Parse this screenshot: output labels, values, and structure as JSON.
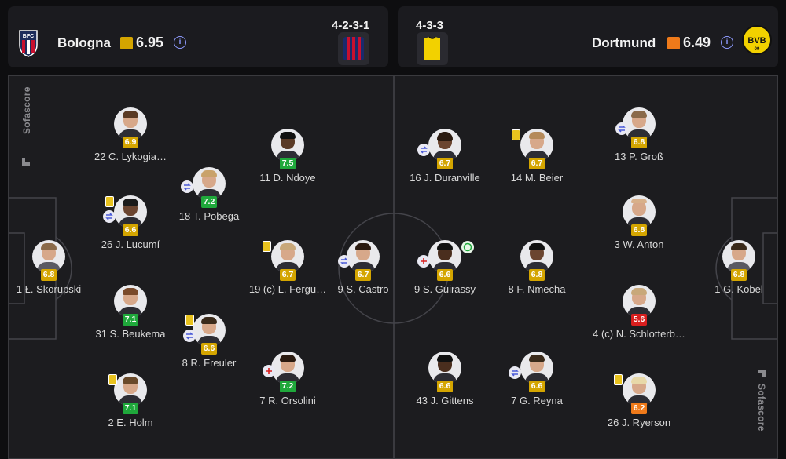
{
  "home": {
    "name": "Bologna",
    "rating": "6.95",
    "formation": "4-2-3-1",
    "rating_color": "#d4a500",
    "info": "i"
  },
  "away": {
    "name": "Dortmund",
    "rating": "6.49",
    "formation": "4-3-3",
    "rating_color": "#ef7a1a",
    "info": "i"
  },
  "watermark": "Sofascore",
  "players": [
    {
      "label": "22 C. Lykogia…",
      "rating": "6.9",
      "color": "#d4a500"
    },
    {
      "label": "26 J. Lucumí",
      "rating": "6.6",
      "color": "#d4a500"
    },
    {
      "label": "1 Ł. Skorupski",
      "rating": "6.8",
      "color": "#d4a500"
    },
    {
      "label": "31 S. Beukema",
      "rating": "7.1",
      "color": "#1fa83b"
    },
    {
      "label": "2 E. Holm",
      "rating": "7.1",
      "color": "#1fa83b"
    },
    {
      "label": "18 T. Pobega",
      "rating": "7.2",
      "color": "#1fa83b"
    },
    {
      "label": "8 R. Freuler",
      "rating": "6.6",
      "color": "#d4a500"
    },
    {
      "label": "11 D. Ndoye",
      "rating": "7.5",
      "color": "#1fa83b"
    },
    {
      "label": "19 (c) L. Fergu…",
      "rating": "6.7",
      "color": "#d4a500"
    },
    {
      "label": "7 R. Orsolini",
      "rating": "7.2",
      "color": "#1fa83b"
    },
    {
      "label": "9 S. Castro",
      "rating": "6.7",
      "color": "#d4a500"
    },
    {
      "label": "16 J. Duranville",
      "rating": "6.7",
      "color": "#d4a500"
    },
    {
      "label": "9 S. Guirassy",
      "rating": "6.6",
      "color": "#d4a500"
    },
    {
      "label": "43 J. Gittens",
      "rating": "6.6",
      "color": "#d4a500"
    },
    {
      "label": "14 M. Beier",
      "rating": "6.7",
      "color": "#d4a500"
    },
    {
      "label": "8 F. Nmecha",
      "rating": "6.8",
      "color": "#d4a500"
    },
    {
      "label": "7 G. Reyna",
      "rating": "6.6",
      "color": "#d4a500"
    },
    {
      "label": "13 P. Groß",
      "rating": "6.8",
      "color": "#d4a500"
    },
    {
      "label": "3 W. Anton",
      "rating": "6.8",
      "color": "#d4a500"
    },
    {
      "label": "4 (c) N. Schlotterb…",
      "rating": "5.6",
      "color": "#d81e1e"
    },
    {
      "label": "26 J. Ryerson",
      "rating": "6.2",
      "color": "#ef7a1a"
    },
    {
      "label": "1 G. Kobel",
      "rating": "6.8",
      "color": "#d4a500"
    }
  ]
}
